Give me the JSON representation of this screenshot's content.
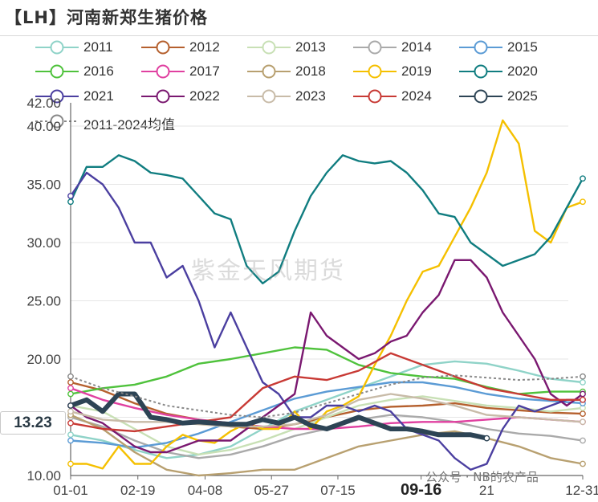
{
  "chart_data": {
    "type": "line",
    "title": "【LH】河南新郑生猪价格",
    "ylim": [
      10,
      42
    ],
    "y_ticks": [
      "10.00",
      "15.00",
      "20.00",
      "25.00",
      "30.00",
      "35.00",
      "40.00",
      "42.00"
    ],
    "x_ticks": [
      "01-01",
      "02-19",
      "04-08",
      "05-27",
      "07-15",
      "09-16",
      "21",
      "12-31"
    ],
    "current_value_label": "13.23",
    "series": [
      {
        "name": "2011",
        "color": "#8fd3c8",
        "x": [
          0,
          40,
          80,
          120,
          160,
          200,
          240,
          280,
          320,
          360,
          400,
          440,
          480,
          520,
          560,
          600,
          640
        ],
        "y": [
          13.5,
          13.0,
          12.2,
          11.5,
          11.8,
          12.5,
          14.0,
          15.5,
          16.5,
          17.5,
          18.5,
          19.5,
          19.8,
          19.6,
          19.0,
          18.3,
          18.0
        ]
      },
      {
        "name": "2012",
        "color": "#b5602e",
        "x": [
          0,
          40,
          80,
          120,
          160,
          200,
          240,
          280,
          320,
          360,
          400,
          440,
          480,
          520,
          560,
          600,
          640
        ],
        "y": [
          18.0,
          17.3,
          16.2,
          15.3,
          14.8,
          14.2,
          14.0,
          14.4,
          15.0,
          15.6,
          15.9,
          16.0,
          16.2,
          15.8,
          15.6,
          15.4,
          15.3
        ]
      },
      {
        "name": "2013",
        "color": "#c8e0b5",
        "x": [
          0,
          40,
          80,
          120,
          160,
          200,
          240,
          280,
          320,
          360,
          400,
          440,
          480,
          520,
          560,
          600,
          640
        ],
        "y": [
          16.0,
          15.5,
          14.0,
          12.5,
          11.8,
          12.2,
          13.0,
          14.0,
          15.0,
          16.0,
          16.5,
          16.8,
          16.4,
          16.0,
          15.8,
          15.5,
          15.8
        ]
      },
      {
        "name": "2014",
        "color": "#aaaaaa",
        "x": [
          0,
          40,
          80,
          120,
          160,
          200,
          240,
          280,
          320,
          360,
          400,
          440,
          480,
          520,
          560,
          600,
          640
        ],
        "y": [
          15.0,
          14.2,
          13.0,
          12.0,
          11.5,
          11.8,
          12.5,
          13.4,
          14.0,
          14.8,
          15.2,
          15.0,
          14.6,
          14.0,
          13.6,
          13.4,
          13.0
        ]
      },
      {
        "name": "2015",
        "color": "#5b9bd5",
        "x": [
          0,
          40,
          80,
          120,
          160,
          200,
          240,
          280,
          320,
          360,
          400,
          440,
          480,
          520,
          560,
          600,
          640
        ],
        "y": [
          13.0,
          12.8,
          12.4,
          12.8,
          13.6,
          14.6,
          15.6,
          16.6,
          17.2,
          17.6,
          18.0,
          18.0,
          17.6,
          17.0,
          16.6,
          16.4,
          16.2
        ]
      },
      {
        "name": "2016",
        "color": "#4fc23c",
        "x": [
          0,
          40,
          80,
          120,
          160,
          200,
          240,
          280,
          320,
          360,
          400,
          440,
          480,
          520,
          560,
          600,
          640
        ],
        "y": [
          17.0,
          17.5,
          17.8,
          18.5,
          19.6,
          20.0,
          20.5,
          21.0,
          20.8,
          19.5,
          18.8,
          18.5,
          18.3,
          17.6,
          17.0,
          17.2,
          17.2
        ]
      },
      {
        "name": "2017",
        "color": "#e040a0",
        "x": [
          0,
          40,
          80,
          120,
          160,
          200,
          240,
          280,
          320,
          360,
          400,
          440,
          480,
          520,
          560,
          600,
          640
        ],
        "y": [
          17.5,
          16.5,
          15.8,
          15.2,
          14.8,
          14.5,
          14.2,
          14.0,
          14.0,
          14.2,
          14.5,
          14.6,
          14.6,
          14.8,
          15.0,
          14.8,
          14.6
        ]
      },
      {
        "name": "2018",
        "color": "#b8a070",
        "x": [
          0,
          40,
          80,
          120,
          160,
          200,
          240,
          280,
          320,
          360,
          400,
          440,
          480,
          520,
          560,
          600,
          640
        ],
        "y": [
          15.2,
          14.0,
          12.0,
          10.5,
          10.0,
          10.2,
          10.5,
          10.5,
          11.5,
          12.5,
          13.0,
          13.5,
          13.8,
          13.2,
          12.5,
          11.5,
          11.0
        ]
      },
      {
        "name": "2019",
        "color": "#f5c000",
        "x": [
          0,
          20,
          40,
          60,
          80,
          100,
          120,
          140,
          160,
          180,
          200,
          220,
          240,
          260,
          280,
          300,
          320,
          340,
          360,
          380,
          400,
          420,
          440,
          460,
          480,
          500,
          520,
          540,
          560,
          580,
          600,
          620,
          640
        ],
        "y": [
          11.0,
          11.0,
          10.6,
          12.5,
          11.0,
          11.0,
          12.5,
          13.5,
          13.0,
          12.8,
          13.8,
          14.5,
          14.0,
          14.0,
          15.5,
          14.0,
          15.5,
          16.0,
          16.8,
          19.5,
          22.0,
          25.0,
          27.5,
          28.0,
          30.5,
          33.0,
          36.0,
          40.5,
          38.5,
          31.0,
          30.0,
          33.0,
          33.5
        ]
      },
      {
        "name": "2020",
        "color": "#107d80",
        "x": [
          0,
          20,
          40,
          60,
          80,
          100,
          120,
          140,
          160,
          180,
          200,
          220,
          240,
          260,
          280,
          300,
          320,
          340,
          360,
          380,
          400,
          420,
          440,
          460,
          480,
          500,
          520,
          540,
          560,
          580,
          600,
          620,
          640
        ],
        "y": [
          33.5,
          36.5,
          36.5,
          37.5,
          37.0,
          36.0,
          35.8,
          35.5,
          34.0,
          32.5,
          32.0,
          28.0,
          26.5,
          27.5,
          31.0,
          34.0,
          36.0,
          37.5,
          37.0,
          36.8,
          37.0,
          36.0,
          34.5,
          32.5,
          32.2,
          30.0,
          29.0,
          28.0,
          28.5,
          29.0,
          30.5,
          33.0,
          35.5
        ]
      },
      {
        "name": "2021",
        "color": "#4b3fa0",
        "x": [
          0,
          20,
          40,
          60,
          80,
          100,
          120,
          140,
          160,
          180,
          200,
          220,
          240,
          260,
          280,
          300,
          320,
          340,
          360,
          380,
          400,
          420,
          440,
          460,
          480,
          500,
          520,
          540,
          560,
          580,
          600,
          620,
          640
        ],
        "y": [
          34.0,
          36.0,
          35.0,
          33.0,
          30.0,
          30.0,
          27.0,
          28.0,
          25.0,
          21.0,
          24.0,
          21.0,
          18.0,
          17.0,
          15.0,
          15.0,
          16.0,
          16.0,
          15.5,
          16.0,
          15.5,
          14.0,
          13.5,
          13.0,
          11.5,
          10.5,
          11.0,
          14.0,
          16.0,
          15.5,
          16.0,
          16.5,
          16.5
        ]
      },
      {
        "name": "2022",
        "color": "#7a1870",
        "x": [
          0,
          20,
          40,
          60,
          80,
          100,
          120,
          140,
          160,
          180,
          200,
          220,
          240,
          260,
          280,
          300,
          320,
          340,
          360,
          380,
          400,
          420,
          440,
          460,
          480,
          500,
          520,
          540,
          560,
          580,
          600,
          620,
          640
        ],
        "y": [
          16.0,
          15.0,
          14.5,
          13.5,
          12.5,
          12.0,
          12.0,
          12.5,
          13.0,
          13.0,
          13.0,
          14.0,
          15.0,
          16.0,
          17.0,
          24.0,
          22.0,
          21.0,
          20.0,
          20.5,
          21.5,
          22.0,
          24.0,
          25.5,
          28.5,
          28.5,
          27.0,
          24.0,
          22.0,
          20.0,
          17.0,
          16.0,
          17.0
        ]
      },
      {
        "name": "2023",
        "color": "#c8bba8",
        "x": [
          0,
          40,
          80,
          120,
          160,
          200,
          240,
          280,
          320,
          360,
          400,
          440,
          480,
          520,
          560,
          600,
          640
        ],
        "y": [
          15.5,
          14.8,
          14.6,
          14.6,
          14.4,
          14.2,
          14.2,
          14.4,
          15.2,
          16.5,
          17.0,
          16.6,
          16.0,
          15.2,
          15.0,
          14.8,
          14.6
        ]
      },
      {
        "name": "2024",
        "color": "#c83a35",
        "x": [
          0,
          40,
          80,
          120,
          160,
          200,
          240,
          280,
          320,
          360,
          400,
          440,
          480,
          520,
          560,
          600,
          640
        ],
        "y": [
          14.5,
          14.0,
          13.8,
          14.2,
          14.6,
          15.0,
          17.5,
          18.5,
          18.2,
          19.0,
          20.5,
          19.5,
          18.5,
          17.5,
          17.0,
          16.5,
          16.5
        ]
      },
      {
        "name": "2025",
        "color": "#2d4455",
        "x": [
          0,
          20,
          40,
          60,
          80,
          100,
          120,
          140,
          160,
          180,
          200,
          220,
          240,
          260,
          280,
          300,
          320,
          340,
          360,
          380,
          400,
          420,
          440,
          460,
          480,
          500,
          520
        ],
        "y": [
          16.0,
          16.5,
          15.5,
          17.0,
          17.0,
          15.0,
          14.8,
          14.5,
          14.6,
          14.5,
          14.4,
          14.4,
          14.8,
          14.5,
          15.0,
          14.3,
          14.0,
          14.5,
          15.0,
          14.5,
          14.0,
          14.0,
          13.8,
          13.5,
          13.5,
          13.5,
          13.2
        ]
      },
      {
        "name": "2011-2024均值",
        "color": "#888888",
        "dashed": true,
        "x": [
          0,
          40,
          80,
          120,
          160,
          200,
          240,
          280,
          320,
          360,
          400,
          440,
          480,
          520,
          560,
          600,
          640
        ],
        "y": [
          18.5,
          17.5,
          16.8,
          16.0,
          15.6,
          15.2,
          15.0,
          15.4,
          16.2,
          17.0,
          17.8,
          18.4,
          18.6,
          18.4,
          18.2,
          18.3,
          18.5
        ]
      }
    ]
  },
  "watermark": "紫金天风期货",
  "source": "公众号 · NB的农产品"
}
